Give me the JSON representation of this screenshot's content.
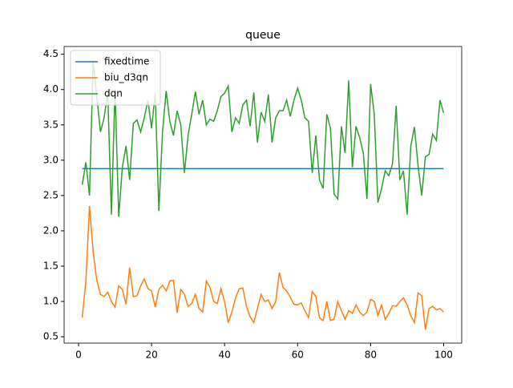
{
  "chart_data": {
    "type": "line",
    "title": "queue",
    "x": [
      1,
      2,
      3,
      4,
      5,
      6,
      7,
      8,
      9,
      10,
      11,
      12,
      13,
      14,
      15,
      16,
      17,
      18,
      19,
      20,
      21,
      22,
      23,
      24,
      25,
      26,
      27,
      28,
      29,
      30,
      31,
      32,
      33,
      34,
      35,
      36,
      37,
      38,
      39,
      40,
      41,
      42,
      43,
      44,
      45,
      46,
      47,
      48,
      49,
      50,
      51,
      52,
      53,
      54,
      55,
      56,
      57,
      58,
      59,
      60,
      61,
      62,
      63,
      64,
      65,
      66,
      67,
      68,
      69,
      70,
      71,
      72,
      73,
      74,
      75,
      76,
      77,
      78,
      79,
      80,
      81,
      82,
      83,
      84,
      85,
      86,
      87,
      88,
      89,
      90,
      91,
      92,
      93,
      94,
      95,
      96,
      97,
      98,
      99,
      100
    ],
    "series": [
      {
        "name": "fixedtime",
        "color": "#1f77b4",
        "values": [
          2.88,
          2.88,
          2.88,
          2.88,
          2.88,
          2.88,
          2.88,
          2.88,
          2.88,
          2.88,
          2.88,
          2.88,
          2.88,
          2.88,
          2.88,
          2.88,
          2.88,
          2.88,
          2.88,
          2.88,
          2.88,
          2.88,
          2.88,
          2.88,
          2.88,
          2.88,
          2.88,
          2.88,
          2.88,
          2.88,
          2.88,
          2.88,
          2.88,
          2.88,
          2.88,
          2.88,
          2.88,
          2.88,
          2.88,
          2.88,
          2.88,
          2.88,
          2.88,
          2.88,
          2.88,
          2.88,
          2.88,
          2.88,
          2.88,
          2.88,
          2.88,
          2.88,
          2.88,
          2.88,
          2.88,
          2.88,
          2.88,
          2.88,
          2.88,
          2.88,
          2.88,
          2.88,
          2.88,
          2.88,
          2.88,
          2.88,
          2.88,
          2.88,
          2.88,
          2.88,
          2.88,
          2.88,
          2.88,
          2.88,
          2.88,
          2.88,
          2.88,
          2.88,
          2.88,
          2.88,
          2.88,
          2.88,
          2.88,
          2.88,
          2.88,
          2.88,
          2.88,
          2.88,
          2.88,
          2.88,
          2.88,
          2.88,
          2.88,
          2.88,
          2.88,
          2.88,
          2.88,
          2.88,
          2.88,
          2.88
        ]
      },
      {
        "name": "biu_d3qn",
        "color": "#ff7f0e",
        "values": [
          0.77,
          1.28,
          2.35,
          1.7,
          1.3,
          1.1,
          1.07,
          1.13,
          1.0,
          0.92,
          1.22,
          1.17,
          0.96,
          1.48,
          1.07,
          1.08,
          1.22,
          1.32,
          1.18,
          1.15,
          0.92,
          1.17,
          1.23,
          1.15,
          1.29,
          1.3,
          0.84,
          1.17,
          1.1,
          0.93,
          0.97,
          1.1,
          0.9,
          0.85,
          1.29,
          1.2,
          1.0,
          0.97,
          1.18,
          1.0,
          0.7,
          0.85,
          1.05,
          1.18,
          1.19,
          0.93,
          0.78,
          0.7,
          0.9,
          1.1,
          1.0,
          1.02,
          0.9,
          1.0,
          1.41,
          1.2,
          1.15,
          1.06,
          0.96,
          0.95,
          0.98,
          0.87,
          0.77,
          1.14,
          1.07,
          0.77,
          0.73,
          1.0,
          0.73,
          0.75,
          1.0,
          0.87,
          0.75,
          0.87,
          0.83,
          0.95,
          0.85,
          0.8,
          0.85,
          1.03,
          1.0,
          0.8,
          0.95,
          0.75,
          0.83,
          0.94,
          0.93,
          1.0,
          1.05,
          0.95,
          0.8,
          0.7,
          1.12,
          1.08,
          0.6,
          0.9,
          0.93,
          0.88,
          0.9,
          0.85
        ]
      },
      {
        "name": "dqn",
        "color": "#2ca02c",
        "values": [
          2.65,
          2.97,
          2.5,
          4.4,
          3.9,
          3.4,
          3.6,
          3.95,
          2.23,
          4.0,
          2.2,
          2.9,
          3.2,
          2.72,
          3.52,
          3.57,
          3.4,
          3.6,
          3.85,
          3.45,
          3.95,
          2.28,
          3.4,
          3.98,
          3.55,
          3.35,
          3.7,
          3.5,
          2.82,
          3.35,
          3.65,
          3.97,
          3.65,
          3.85,
          3.5,
          3.58,
          3.55,
          3.7,
          3.9,
          3.95,
          4.05,
          3.4,
          3.6,
          3.52,
          3.78,
          3.85,
          3.48,
          3.96,
          3.25,
          3.68,
          3.55,
          3.93,
          3.25,
          3.6,
          3.7,
          3.7,
          3.85,
          3.62,
          3.85,
          4.02,
          3.85,
          3.6,
          3.55,
          2.82,
          3.35,
          2.72,
          2.6,
          3.65,
          3.45,
          2.52,
          2.45,
          3.48,
          3.1,
          4.13,
          2.9,
          3.48,
          3.32,
          3.1,
          2.45,
          4.08,
          3.65,
          2.4,
          2.6,
          2.85,
          2.78,
          2.95,
          3.77,
          2.72,
          2.85,
          2.23,
          3.2,
          3.47,
          2.92,
          2.5,
          3.05,
          3.08,
          3.37,
          3.28,
          3.85,
          3.67
        ]
      }
    ],
    "xlim": [
      -3.95,
      104.95
    ],
    "ylim": [
      0.41,
      4.61
    ],
    "xticks": [
      0,
      20,
      40,
      60,
      80,
      100
    ],
    "yticks": [
      0.5,
      {
        "value": 1,
        "label": "1.0"
      },
      1.5,
      {
        "value": 2,
        "label": "2.0"
      },
      2.5,
      {
        "value": 3,
        "label": "3.0"
      },
      3.5,
      {
        "value": 4,
        "label": "4.0"
      },
      4.5
    ],
    "legend": "upper left"
  }
}
